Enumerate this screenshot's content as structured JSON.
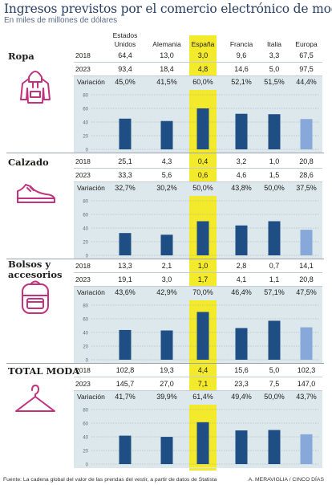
{
  "title": "Ingresos previstos por el comercio electrónico de moda",
  "subtitle": "En miles de millones de dólares",
  "columns": [
    "Estados Unidos",
    "Alemania",
    "España",
    "Francia",
    "Italia",
    "Europa"
  ],
  "column_lines": [
    [
      "Estados",
      "Unidos"
    ],
    [
      "Alemania"
    ],
    [
      "España"
    ],
    [
      "Francia"
    ],
    [
      "Italia"
    ],
    [
      "Europa"
    ]
  ],
  "years": [
    "2018",
    "2023"
  ],
  "variation_label": "Variación",
  "y_ticks": [
    "80",
    "60",
    "40",
    "20",
    "0"
  ],
  "colors": {
    "bar": "#1f4e85",
    "bar_europe": "#87a8d8",
    "highlight": "#f4ea2c",
    "panel": "#dde8ec",
    "icon": "#c2337e"
  },
  "sections": [
    {
      "title_lines": [
        "Ropa"
      ],
      "icon": "hoodie-icon",
      "rows": [
        [
          "64,4",
          "13,0",
          "3,0",
          "9,6",
          "3,3",
          "67,5"
        ],
        [
          "93,4",
          "18,4",
          "4,8",
          "14,6",
          "5,0",
          "97,5"
        ]
      ],
      "variation": [
        "45,0%",
        "41,5%",
        "60,0%",
        "52,1%",
        "51,5%",
        "44,4%"
      ]
    },
    {
      "title_lines": [
        "Calzado"
      ],
      "icon": "sneaker-icon",
      "rows": [
        [
          "25,1",
          "4,3",
          "0,4",
          "3,2",
          "1,0",
          "20,8"
        ],
        [
          "33,3",
          "5,6",
          "0,6",
          "4,6",
          "1,5",
          "28,6"
        ]
      ],
      "variation": [
        "32,7%",
        "30,2%",
        "50,0%",
        "43,8%",
        "50,0%",
        "37,5%"
      ]
    },
    {
      "title_lines": [
        "Bolsos y",
        "accesorios"
      ],
      "icon": "backpack-icon",
      "rows": [
        [
          "13,3",
          "2,1",
          "1,0",
          "2,8",
          "0,7",
          "14,1"
        ],
        [
          "19,1",
          "3,0",
          "1,7",
          "4,1",
          "1,1",
          "20,8"
        ]
      ],
      "variation": [
        "43,6%",
        "42,9%",
        "70,0%",
        "46,4%",
        "57,1%",
        "47,5%"
      ]
    },
    {
      "title_lines": [
        "TOTAL MODA"
      ],
      "icon": "hanger-icon",
      "rows": [
        [
          "102,8",
          "19,3",
          "4,4",
          "15,6",
          "5,0",
          "102,3"
        ],
        [
          "145,7",
          "27,0",
          "7,1",
          "23,3",
          "7,5",
          "147,0"
        ]
      ],
      "variation": [
        "41,7%",
        "39,9%",
        "61,4%",
        "49,4%",
        "50,0%",
        "43,7%"
      ]
    }
  ],
  "chart_data": [
    {
      "type": "bar",
      "title": "Ropa",
      "ylabel": "Variación (%)",
      "categories": [
        "Estados Unidos",
        "Alemania",
        "España",
        "Francia",
        "Italia",
        "Europa"
      ],
      "values": [
        45.0,
        41.5,
        60.0,
        52.1,
        51.5,
        44.4
      ],
      "ylim": [
        0,
        80
      ],
      "grid": true
    },
    {
      "type": "bar",
      "title": "Calzado",
      "ylabel": "Variación (%)",
      "categories": [
        "Estados Unidos",
        "Alemania",
        "España",
        "Francia",
        "Italia",
        "Europa"
      ],
      "values": [
        32.7,
        30.2,
        50.0,
        43.8,
        50.0,
        37.5
      ],
      "ylim": [
        0,
        80
      ],
      "grid": true
    },
    {
      "type": "bar",
      "title": "Bolsos y accesorios",
      "ylabel": "Variación (%)",
      "categories": [
        "Estados Unidos",
        "Alemania",
        "España",
        "Francia",
        "Italia",
        "Europa"
      ],
      "values": [
        43.6,
        42.9,
        70.0,
        46.4,
        57.1,
        47.5
      ],
      "ylim": [
        0,
        80
      ],
      "grid": true
    },
    {
      "type": "bar",
      "title": "TOTAL MODA",
      "ylabel": "Variación (%)",
      "categories": [
        "Estados Unidos",
        "Alemania",
        "España",
        "Francia",
        "Italia",
        "Europa"
      ],
      "values": [
        41.7,
        39.9,
        61.4,
        49.4,
        50.0,
        43.7
      ],
      "ylim": [
        0,
        80
      ],
      "grid": true
    }
  ],
  "footer": "Fuente: La cadena global del valor de las prendas del vestir, a partir de datos de Statista",
  "credit": "A. MERAVIGLIA / CINCO DÍAS"
}
